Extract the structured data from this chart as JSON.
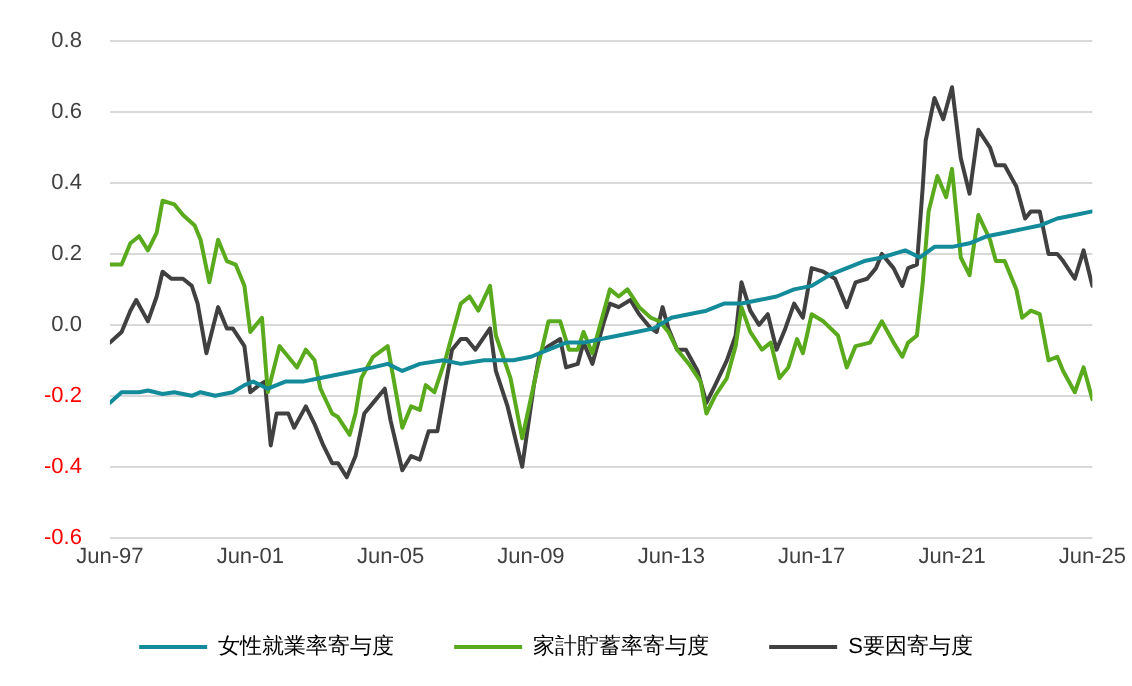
{
  "chart_data": {
    "type": "line",
    "xlim": [
      "1997-06",
      "2025-06"
    ],
    "xticks": [
      {
        "value": "1997-06",
        "label": "Jun-97"
      },
      {
        "value": "2001-06",
        "label": "Jun-01"
      },
      {
        "value": "2005-06",
        "label": "Jun-05"
      },
      {
        "value": "2009-06",
        "label": "Jun-09"
      },
      {
        "value": "2013-06",
        "label": "Jun-13"
      },
      {
        "value": "2017-06",
        "label": "Jun-17"
      },
      {
        "value": "2021-06",
        "label": "Jun-21"
      },
      {
        "value": "2025-06",
        "label": "Jun-25"
      }
    ],
    "ylim": [
      -0.6,
      0.8
    ],
    "yticks": [
      {
        "value": -0.6,
        "label": "-0.6"
      },
      {
        "value": -0.4,
        "label": "-0.4"
      },
      {
        "value": -0.2,
        "label": "-0.2"
      },
      {
        "value": 0,
        "label": "0.0"
      },
      {
        "value": 0.2,
        "label": "0.2"
      },
      {
        "value": 0.4,
        "label": "0.4"
      },
      {
        "value": 0.6,
        "label": "0.6"
      },
      {
        "value": 0.8,
        "label": "0.8"
      }
    ],
    "grid": "y",
    "legend": "bottom",
    "marker": "none",
    "line_style": "solid",
    "series": [
      {
        "name": "女性就業率寄与度",
        "color": "#138b9a",
        "x": [
          "1997-06",
          "1997-10",
          "1998-04",
          "1998-07",
          "1998-12",
          "1999-04",
          "1999-10",
          "2000-01",
          "2000-06",
          "2000-12",
          "2001-04",
          "2001-07",
          "2001-12",
          "2002-06",
          "2002-12",
          "2003-06",
          "2003-12",
          "2004-06",
          "2004-12",
          "2005-05",
          "2005-10",
          "2006-04",
          "2006-12",
          "2007-06",
          "2008-02",
          "2008-12",
          "2009-06",
          "2009-12",
          "2010-06",
          "2010-12",
          "2011-06",
          "2011-12",
          "2012-06",
          "2012-12",
          "2013-06",
          "2013-12",
          "2014-06",
          "2014-12",
          "2015-06",
          "2015-12",
          "2016-06",
          "2016-12",
          "2017-06",
          "2017-12",
          "2018-06",
          "2018-12",
          "2019-06",
          "2020-02",
          "2020-07",
          "2020-12",
          "2021-06",
          "2021-12",
          "2022-06",
          "2022-12",
          "2023-06",
          "2023-12",
          "2024-06",
          "2024-12",
          "2025-06"
        ],
        "values": [
          -0.22,
          -0.19,
          -0.19,
          -0.185,
          -0.195,
          -0.19,
          -0.2,
          -0.19,
          -0.2,
          -0.19,
          -0.17,
          -0.16,
          -0.18,
          -0.16,
          -0.16,
          -0.15,
          -0.14,
          -0.13,
          -0.12,
          -0.11,
          -0.13,
          -0.11,
          -0.1,
          -0.11,
          -0.1,
          -0.1,
          -0.09,
          -0.07,
          -0.05,
          -0.05,
          -0.04,
          -0.03,
          -0.02,
          -0.01,
          0.02,
          0.03,
          0.04,
          0.06,
          0.06,
          0.07,
          0.08,
          0.1,
          0.11,
          0.14,
          0.16,
          0.18,
          0.19,
          0.21,
          0.19,
          0.22,
          0.22,
          0.23,
          0.25,
          0.26,
          0.27,
          0.28,
          0.3,
          0.31,
          0.32
        ]
      },
      {
        "name": "家計貯蓄率寄与度",
        "color": "#5aaa1e",
        "x": [
          "1997-06",
          "1997-10",
          "1998-01",
          "1998-04",
          "1998-07",
          "1998-10",
          "1998-12",
          "1999-04",
          "1999-07",
          "1999-11",
          "2000-01",
          "2000-04",
          "2000-07",
          "2000-10",
          "2001-01",
          "2001-04",
          "2001-06",
          "2001-10",
          "2001-12",
          "2002-04",
          "2002-06",
          "2002-10",
          "2003-01",
          "2003-04",
          "2003-06",
          "2003-10",
          "2003-12",
          "2004-04",
          "2004-06",
          "2004-08",
          "2004-12",
          "2005-05",
          "2005-10",
          "2006-01",
          "2006-04",
          "2006-06",
          "2006-09",
          "2007-01",
          "2007-06",
          "2007-09",
          "2007-12",
          "2008-04",
          "2008-06",
          "2008-11",
          "2009-03",
          "2009-08",
          "2009-12",
          "2010-04",
          "2010-07",
          "2010-10",
          "2010-12",
          "2011-03",
          "2011-07",
          "2011-09",
          "2011-12",
          "2012-03",
          "2012-07",
          "2012-11",
          "2013-02",
          "2013-05",
          "2013-08",
          "2013-12",
          "2014-04",
          "2014-06",
          "2014-09",
          "2015-01",
          "2015-04",
          "2015-06",
          "2015-09",
          "2016-01",
          "2016-04",
          "2016-07",
          "2016-10",
          "2017-01",
          "2017-03",
          "2017-06",
          "2017-10",
          "2018-03",
          "2018-06",
          "2018-09",
          "2019-02",
          "2019-06",
          "2019-10",
          "2020-01",
          "2020-03",
          "2020-06",
          "2020-08",
          "2020-10",
          "2021-01",
          "2021-04",
          "2021-06",
          "2021-09",
          "2021-12",
          "2022-03",
          "2022-07",
          "2022-09",
          "2022-12",
          "2023-04",
          "2023-06",
          "2023-09",
          "2023-12",
          "2024-03",
          "2024-06",
          "2024-08",
          "2024-12",
          "2025-03",
          "2025-06"
        ],
        "values": [
          0.17,
          0.17,
          0.23,
          0.25,
          0.21,
          0.26,
          0.35,
          0.34,
          0.31,
          0.28,
          0.24,
          0.12,
          0.24,
          0.18,
          0.17,
          0.11,
          -0.02,
          0.02,
          -0.19,
          -0.06,
          -0.08,
          -0.12,
          -0.07,
          -0.1,
          -0.18,
          -0.25,
          -0.26,
          -0.31,
          -0.25,
          -0.15,
          -0.09,
          -0.06,
          -0.29,
          -0.23,
          -0.24,
          -0.17,
          -0.19,
          -0.09,
          0.06,
          0.08,
          0.04,
          0.11,
          -0.03,
          -0.15,
          -0.32,
          -0.13,
          0.01,
          0.01,
          -0.07,
          -0.07,
          -0.02,
          -0.08,
          0.04,
          0.1,
          0.08,
          0.1,
          0.05,
          0.02,
          0.01,
          -0.02,
          -0.07,
          -0.11,
          -0.16,
          -0.25,
          -0.2,
          -0.15,
          -0.06,
          0.05,
          -0.02,
          -0.07,
          -0.05,
          -0.15,
          -0.12,
          -0.04,
          -0.08,
          0.03,
          0.01,
          -0.03,
          -0.12,
          -0.06,
          -0.05,
          0.01,
          -0.05,
          -0.09,
          -0.05,
          -0.03,
          0.12,
          0.32,
          0.42,
          0.36,
          0.44,
          0.19,
          0.14,
          0.31,
          0.24,
          0.18,
          0.18,
          0.1,
          0.02,
          0.04,
          0.03,
          -0.1,
          -0.09,
          -0.13,
          -0.19,
          -0.12,
          -0.21
        ]
      },
      {
        "name": "S要因寄与度",
        "color": "#404040",
        "x": [
          "1997-06",
          "1997-10",
          "1998-01",
          "1998-03",
          "1998-07",
          "1998-10",
          "1998-12",
          "1999-03",
          "1999-07",
          "1999-10",
          "1999-12",
          "2000-03",
          "2000-07",
          "2000-10",
          "2000-12",
          "2001-04",
          "2001-06",
          "2001-09",
          "2001-11",
          "2002-01",
          "2002-03",
          "2002-07",
          "2002-09",
          "2003-01",
          "2003-04",
          "2003-07",
          "2003-10",
          "2003-12",
          "2004-03",
          "2004-06",
          "2004-09",
          "2004-12",
          "2005-04",
          "2005-06",
          "2005-10",
          "2006-01",
          "2006-04",
          "2006-07",
          "2006-10",
          "2007-01",
          "2007-03",
          "2007-06",
          "2007-08",
          "2007-11",
          "2008-04",
          "2008-06",
          "2008-10",
          "2009-03",
          "2009-07",
          "2009-09",
          "2009-12",
          "2010-04",
          "2010-06",
          "2010-10",
          "2010-12",
          "2011-03",
          "2011-07",
          "2011-09",
          "2011-12",
          "2012-04",
          "2012-07",
          "2012-11",
          "2013-01",
          "2013-03",
          "2013-05",
          "2013-08",
          "2013-11",
          "2014-03",
          "2014-06",
          "2014-09",
          "2015-01",
          "2015-04",
          "2015-06",
          "2015-09",
          "2015-12",
          "2016-03",
          "2016-06",
          "2016-09",
          "2016-12",
          "2017-03",
          "2017-06",
          "2017-10",
          "2018-02",
          "2018-06",
          "2018-09",
          "2019-01",
          "2019-04",
          "2019-06",
          "2019-10",
          "2020-01",
          "2020-03",
          "2020-06",
          "2020-08",
          "2020-09",
          "2020-12",
          "2021-03",
          "2021-06",
          "2021-09",
          "2021-12",
          "2022-03",
          "2022-07",
          "2022-09",
          "2022-12",
          "2023-04",
          "2023-07",
          "2023-09",
          "2023-12",
          "2024-03",
          "2024-06",
          "2024-08",
          "2024-12",
          "2025-03",
          "2025-06"
        ],
        "values": [
          -0.05,
          -0.02,
          0.04,
          0.07,
          0.01,
          0.08,
          0.15,
          0.13,
          0.13,
          0.11,
          0.06,
          -0.08,
          0.05,
          -0.01,
          -0.01,
          -0.06,
          -0.19,
          -0.17,
          -0.16,
          -0.34,
          -0.25,
          -0.25,
          -0.29,
          -0.23,
          -0.28,
          -0.34,
          -0.39,
          -0.39,
          -0.43,
          -0.37,
          -0.25,
          -0.22,
          -0.18,
          -0.27,
          -0.41,
          -0.37,
          -0.38,
          -0.3,
          -0.3,
          -0.16,
          -0.07,
          -0.04,
          -0.04,
          -0.07,
          -0.01,
          -0.13,
          -0.23,
          -0.4,
          -0.17,
          -0.08,
          -0.06,
          -0.04,
          -0.12,
          -0.11,
          -0.05,
          -0.11,
          0.01,
          0.06,
          0.05,
          0.07,
          0.03,
          -0.01,
          -0.02,
          0.05,
          -0.01,
          -0.07,
          -0.07,
          -0.13,
          -0.22,
          -0.17,
          -0.1,
          -0.03,
          0.12,
          0.04,
          0,
          0.03,
          -0.07,
          -0.01,
          0.06,
          0.02,
          0.16,
          0.15,
          0.13,
          0.05,
          0.12,
          0.13,
          0.16,
          0.2,
          0.16,
          0.11,
          0.16,
          0.17,
          0.39,
          0.52,
          0.64,
          0.58,
          0.67,
          0.47,
          0.37,
          0.55,
          0.5,
          0.45,
          0.45,
          0.39,
          0.3,
          0.32,
          0.32,
          0.2,
          0.2,
          0.18,
          0.13,
          0.21,
          0.11
        ]
      }
    ]
  }
}
